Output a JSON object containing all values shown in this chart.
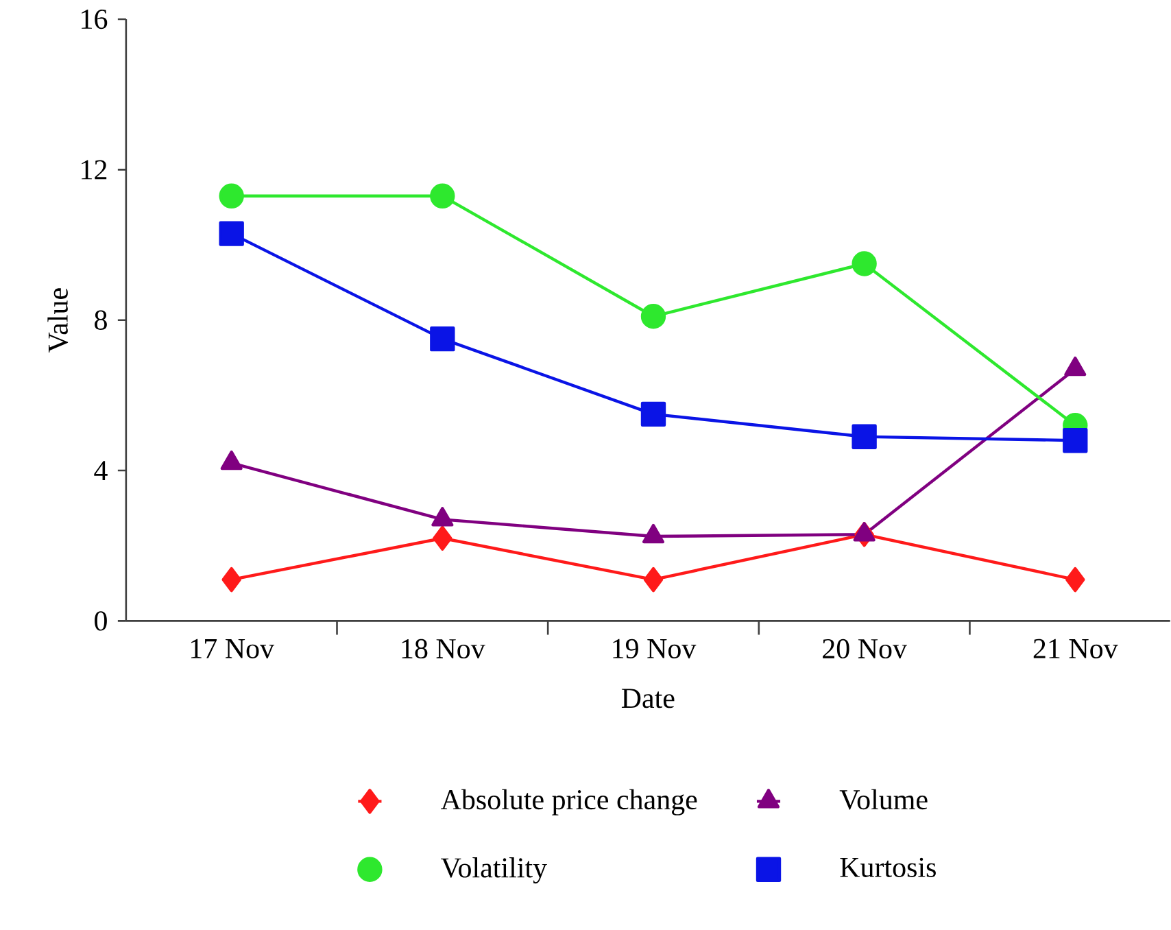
{
  "chart_data": {
    "type": "line",
    "xlabel": "Date",
    "ylabel": "Value",
    "categories": [
      "17 Nov",
      "18 Nov",
      "19 Nov",
      "20 Nov",
      "21 Nov"
    ],
    "ylim": [
      0,
      16
    ],
    "yticks": [
      0,
      4,
      8,
      12,
      16
    ],
    "grid": false,
    "legend": "bottom",
    "line_style": "solid",
    "series": [
      {
        "name": "Absolute price change",
        "color": "#ff1a1a",
        "marker": "diamond",
        "values": [
          1.1,
          2.2,
          1.1,
          2.3,
          1.1
        ]
      },
      {
        "name": "Volume",
        "color": "#800080",
        "marker": "triangle",
        "values": [
          4.2,
          2.7,
          2.25,
          2.3,
          6.7
        ]
      },
      {
        "name": "Volatility",
        "color": "#2ee82e",
        "marker": "circle",
        "values": [
          11.3,
          11.3,
          8.1,
          9.5,
          5.2
        ]
      },
      {
        "name": "Kurtosis",
        "color": "#0a14e6",
        "marker": "square",
        "values": [
          10.3,
          7.5,
          5.5,
          4.9,
          4.8
        ]
      }
    ]
  }
}
